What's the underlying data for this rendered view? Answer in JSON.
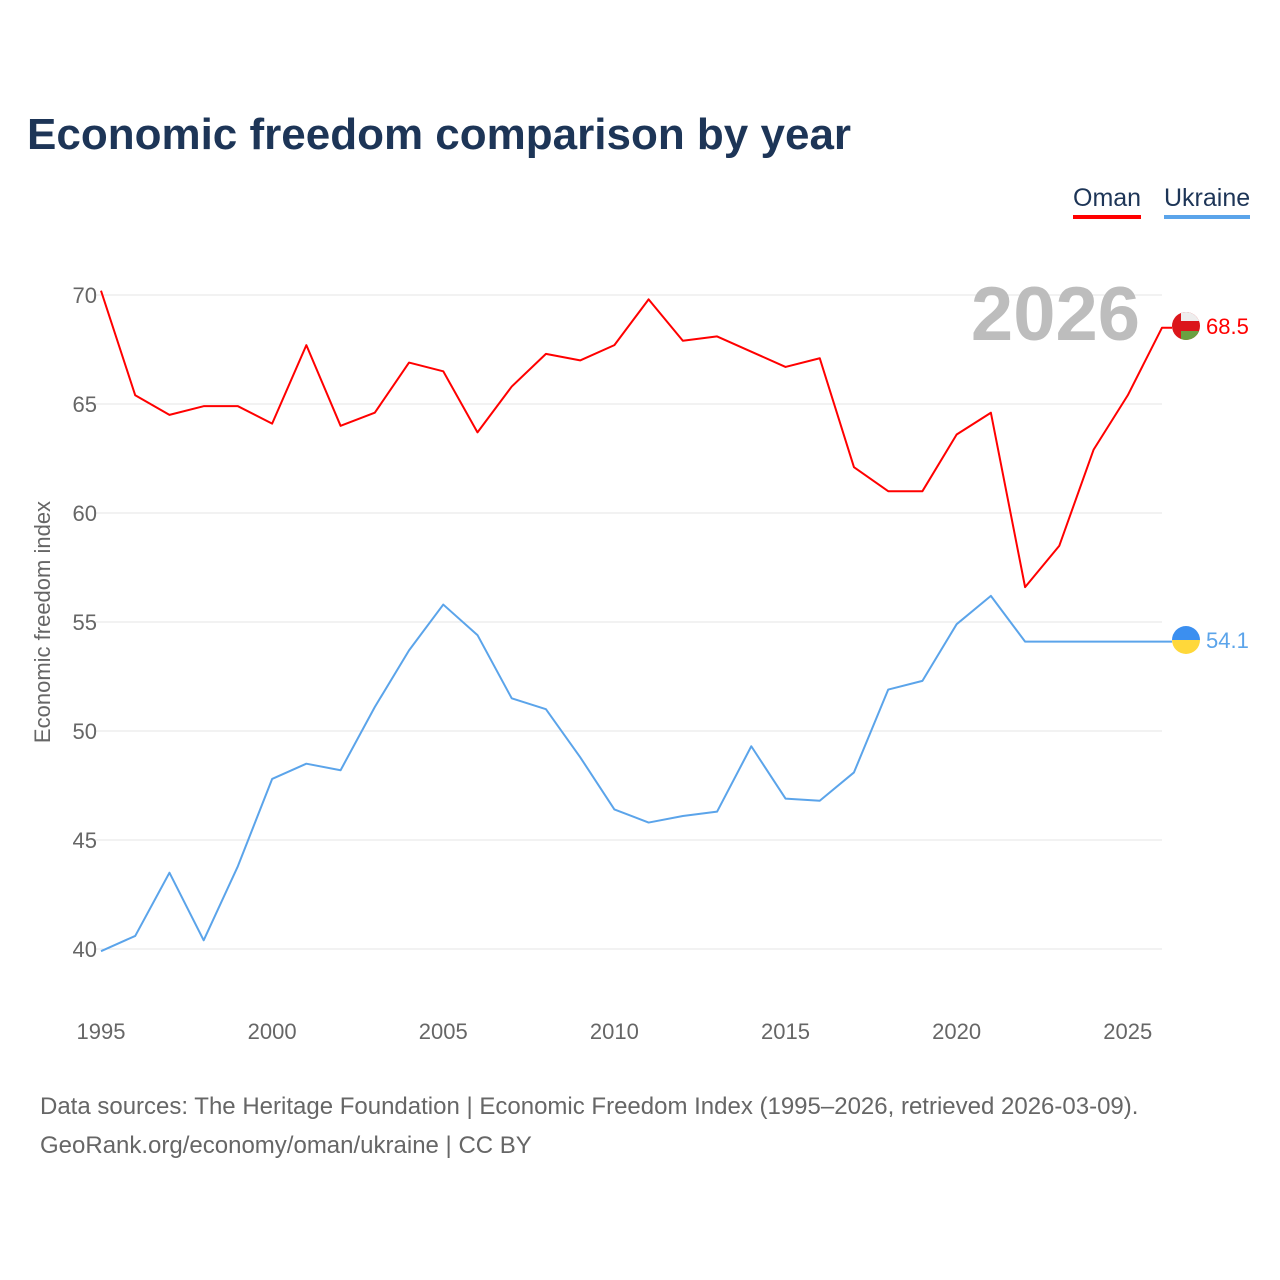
{
  "title": "Economic freedom comparison by year",
  "legend": [
    {
      "label": "Oman",
      "color": "#ff0000"
    },
    {
      "label": "Ukraine",
      "color": "#5ba4ea"
    }
  ],
  "footer": {
    "line1": "Data sources: The Heritage Foundation | Economic Freedom Index (1995–2026, retrieved 2026-03-09).",
    "line2": "GeoRank.org/economy/oman/ukraine | CC BY"
  },
  "chart_data": {
    "type": "line",
    "title": "Economic freedom comparison by year",
    "xlabel": "",
    "ylabel": "Economic freedom index",
    "year_watermark": "2026",
    "xlim": [
      1995,
      2026
    ],
    "ylim": [
      37,
      72
    ],
    "xticks": [
      1995,
      2000,
      2005,
      2010,
      2015,
      2020,
      2025
    ],
    "yticks": [
      40,
      45,
      50,
      55,
      60,
      65,
      70
    ],
    "grid": true,
    "legend_position": "top-right",
    "x": [
      1995,
      1996,
      1997,
      1998,
      1999,
      2000,
      2001,
      2002,
      2003,
      2004,
      2005,
      2006,
      2007,
      2008,
      2009,
      2010,
      2011,
      2012,
      2013,
      2014,
      2015,
      2016,
      2017,
      2018,
      2019,
      2020,
      2021,
      2022,
      2023,
      2024,
      2025,
      2026
    ],
    "series": [
      {
        "name": "Oman",
        "color": "#ff0000",
        "end_label": "68.5",
        "flag": "oman-flag",
        "values": [
          70.2,
          65.4,
          64.5,
          64.9,
          64.9,
          64.1,
          67.7,
          64.0,
          64.6,
          66.9,
          66.5,
          63.7,
          65.8,
          67.3,
          67.0,
          67.7,
          69.8,
          67.9,
          68.1,
          67.4,
          66.7,
          67.1,
          62.1,
          61.0,
          61.0,
          63.6,
          64.6,
          56.6,
          58.5,
          62.9,
          65.4,
          68.5
        ]
      },
      {
        "name": "Ukraine",
        "color": "#5ba4ea",
        "end_label": "54.1",
        "flag": "ukraine-flag",
        "values": [
          39.9,
          40.6,
          43.5,
          40.4,
          43.8,
          47.8,
          48.5,
          48.2,
          51.1,
          53.7,
          55.8,
          54.4,
          51.5,
          51.0,
          48.8,
          46.4,
          45.8,
          46.1,
          46.3,
          49.3,
          46.9,
          46.8,
          48.1,
          51.9,
          52.3,
          54.9,
          56.2,
          54.1,
          54.1,
          54.1,
          54.1,
          54.1
        ]
      }
    ]
  }
}
